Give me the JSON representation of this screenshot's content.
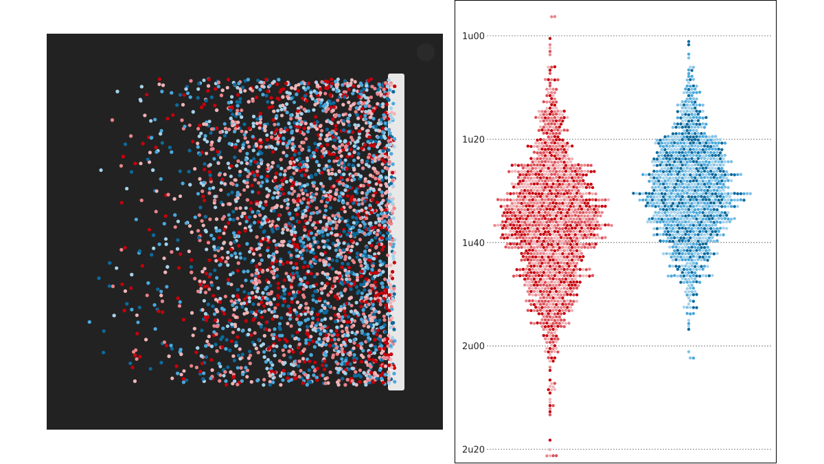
{
  "chart_data": {
    "type": "scatter",
    "subtype": "beeswarm",
    "title": "",
    "xlabel": "",
    "ylabel": "",
    "y_unit": "minutes",
    "yticks": [
      {
        "label": "1u00",
        "value": 60
      },
      {
        "label": "1u20",
        "value": 80
      },
      {
        "label": "1u40",
        "value": 100
      },
      {
        "label": "2u00",
        "value": 120
      },
      {
        "label": "2u20",
        "value": 140
      }
    ],
    "ylim": [
      56,
      142
    ],
    "grid": true,
    "series": [
      {
        "name": "red",
        "colors": [
          "#c8000a",
          "#e8848a",
          "#f0b4b8",
          "#dc5058"
        ],
        "count": 1400,
        "min": 56.5,
        "median": 95,
        "mode": 100,
        "max": 141.5
      },
      {
        "name": "blue",
        "colors": [
          "#0d6a9c",
          "#4aa8dc",
          "#a6d2ea",
          "#7ec0e4"
        ],
        "count": 1100,
        "min": 61,
        "median": 90,
        "mode": 89,
        "max": 122.5
      }
    ]
  },
  "photo": {
    "colors": [
      "#c8000a",
      "#e8848a",
      "#f0b4b8",
      "#0d6a9c",
      "#4aa8dc",
      "#a6d2ea"
    ],
    "count": 5200
  }
}
